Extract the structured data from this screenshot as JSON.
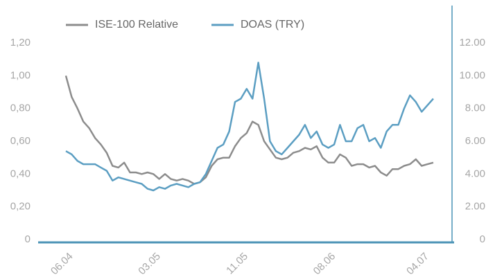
{
  "chart_data": {
    "type": "line",
    "categories": [
      "06.04",
      null,
      null,
      null,
      null,
      null,
      null,
      null,
      null,
      null,
      null,
      null,
      null,
      null,
      null,
      "03.05",
      null,
      null,
      null,
      null,
      null,
      null,
      null,
      null,
      null,
      null,
      null,
      null,
      null,
      null,
      "11.05",
      null,
      null,
      null,
      null,
      null,
      null,
      null,
      null,
      null,
      null,
      null,
      null,
      null,
      null,
      "08.06",
      null,
      null,
      null,
      null,
      null,
      null,
      null,
      null,
      null,
      null,
      null,
      null,
      null,
      null,
      null,
      "04.07",
      null,
      null
    ],
    "series": [
      {
        "name": "ISE-100 Relative",
        "color": "#8c8c8c",
        "values": [
          1.0,
          0.87,
          0.8,
          0.72,
          0.68,
          0.62,
          0.58,
          0.53,
          0.45,
          0.44,
          0.47,
          0.41,
          0.41,
          0.4,
          0.41,
          0.4,
          0.37,
          0.4,
          0.37,
          0.36,
          0.37,
          0.36,
          0.34,
          0.35,
          0.38,
          0.45,
          0.49,
          0.5,
          0.5,
          0.57,
          0.62,
          0.65,
          0.72,
          0.7,
          0.6,
          0.55,
          0.5,
          0.49,
          0.5,
          0.53,
          0.54,
          0.56,
          0.55,
          0.57,
          0.5,
          0.47,
          0.47,
          0.52,
          0.5,
          0.45,
          0.46,
          0.46,
          0.44,
          0.45,
          0.41,
          0.39,
          0.43,
          0.43,
          0.45,
          0.46,
          0.49,
          0.45,
          0.46,
          0.47
        ]
      },
      {
        "name": "DOAS (TRY)",
        "color": "#5b9ec2",
        "axis": "y2",
        "values": [
          5.4,
          5.2,
          4.8,
          4.6,
          4.6,
          4.6,
          4.4,
          4.2,
          3.6,
          3.8,
          3.7,
          3.6,
          3.5,
          3.4,
          3.1,
          3.0,
          3.2,
          3.1,
          3.3,
          3.4,
          3.3,
          3.2,
          3.4,
          3.5,
          4.0,
          4.8,
          5.6,
          5.8,
          6.6,
          8.4,
          8.6,
          9.2,
          8.6,
          10.8,
          8.6,
          6.0,
          5.4,
          5.2,
          5.6,
          6.0,
          6.4,
          7.0,
          6.2,
          6.6,
          5.8,
          5.6,
          5.8,
          7.0,
          6.0,
          6.0,
          6.8,
          7.0,
          6.0,
          6.2,
          5.6,
          6.6,
          7.0,
          7.0,
          8.0,
          8.8,
          8.4,
          7.8,
          8.2,
          8.6
        ]
      }
    ],
    "ylim": [
      0,
      1.2
    ],
    "yticks": [
      0,
      {
        "value": 0.2,
        "label": "0,20"
      },
      {
        "value": 0.4,
        "label": "0,40"
      },
      {
        "value": 0.6,
        "label": "0,60"
      },
      {
        "value": 0.8,
        "label": "0,80"
      },
      {
        "value": 1.0,
        "label": "1,00"
      },
      {
        "value": 1.2,
        "label": "1,20"
      }
    ],
    "y2lim": [
      0,
      12
    ],
    "y2ticks": [
      0,
      {
        "value": 2,
        "label": "2.00"
      },
      {
        "value": 4,
        "label": "4.00"
      },
      {
        "value": 6,
        "label": "6.00"
      },
      {
        "value": 8,
        "label": "8.00"
      },
      {
        "value": 10,
        "label": "10.00"
      },
      {
        "value": 12,
        "label": "12.00"
      }
    ],
    "legend": "top"
  }
}
